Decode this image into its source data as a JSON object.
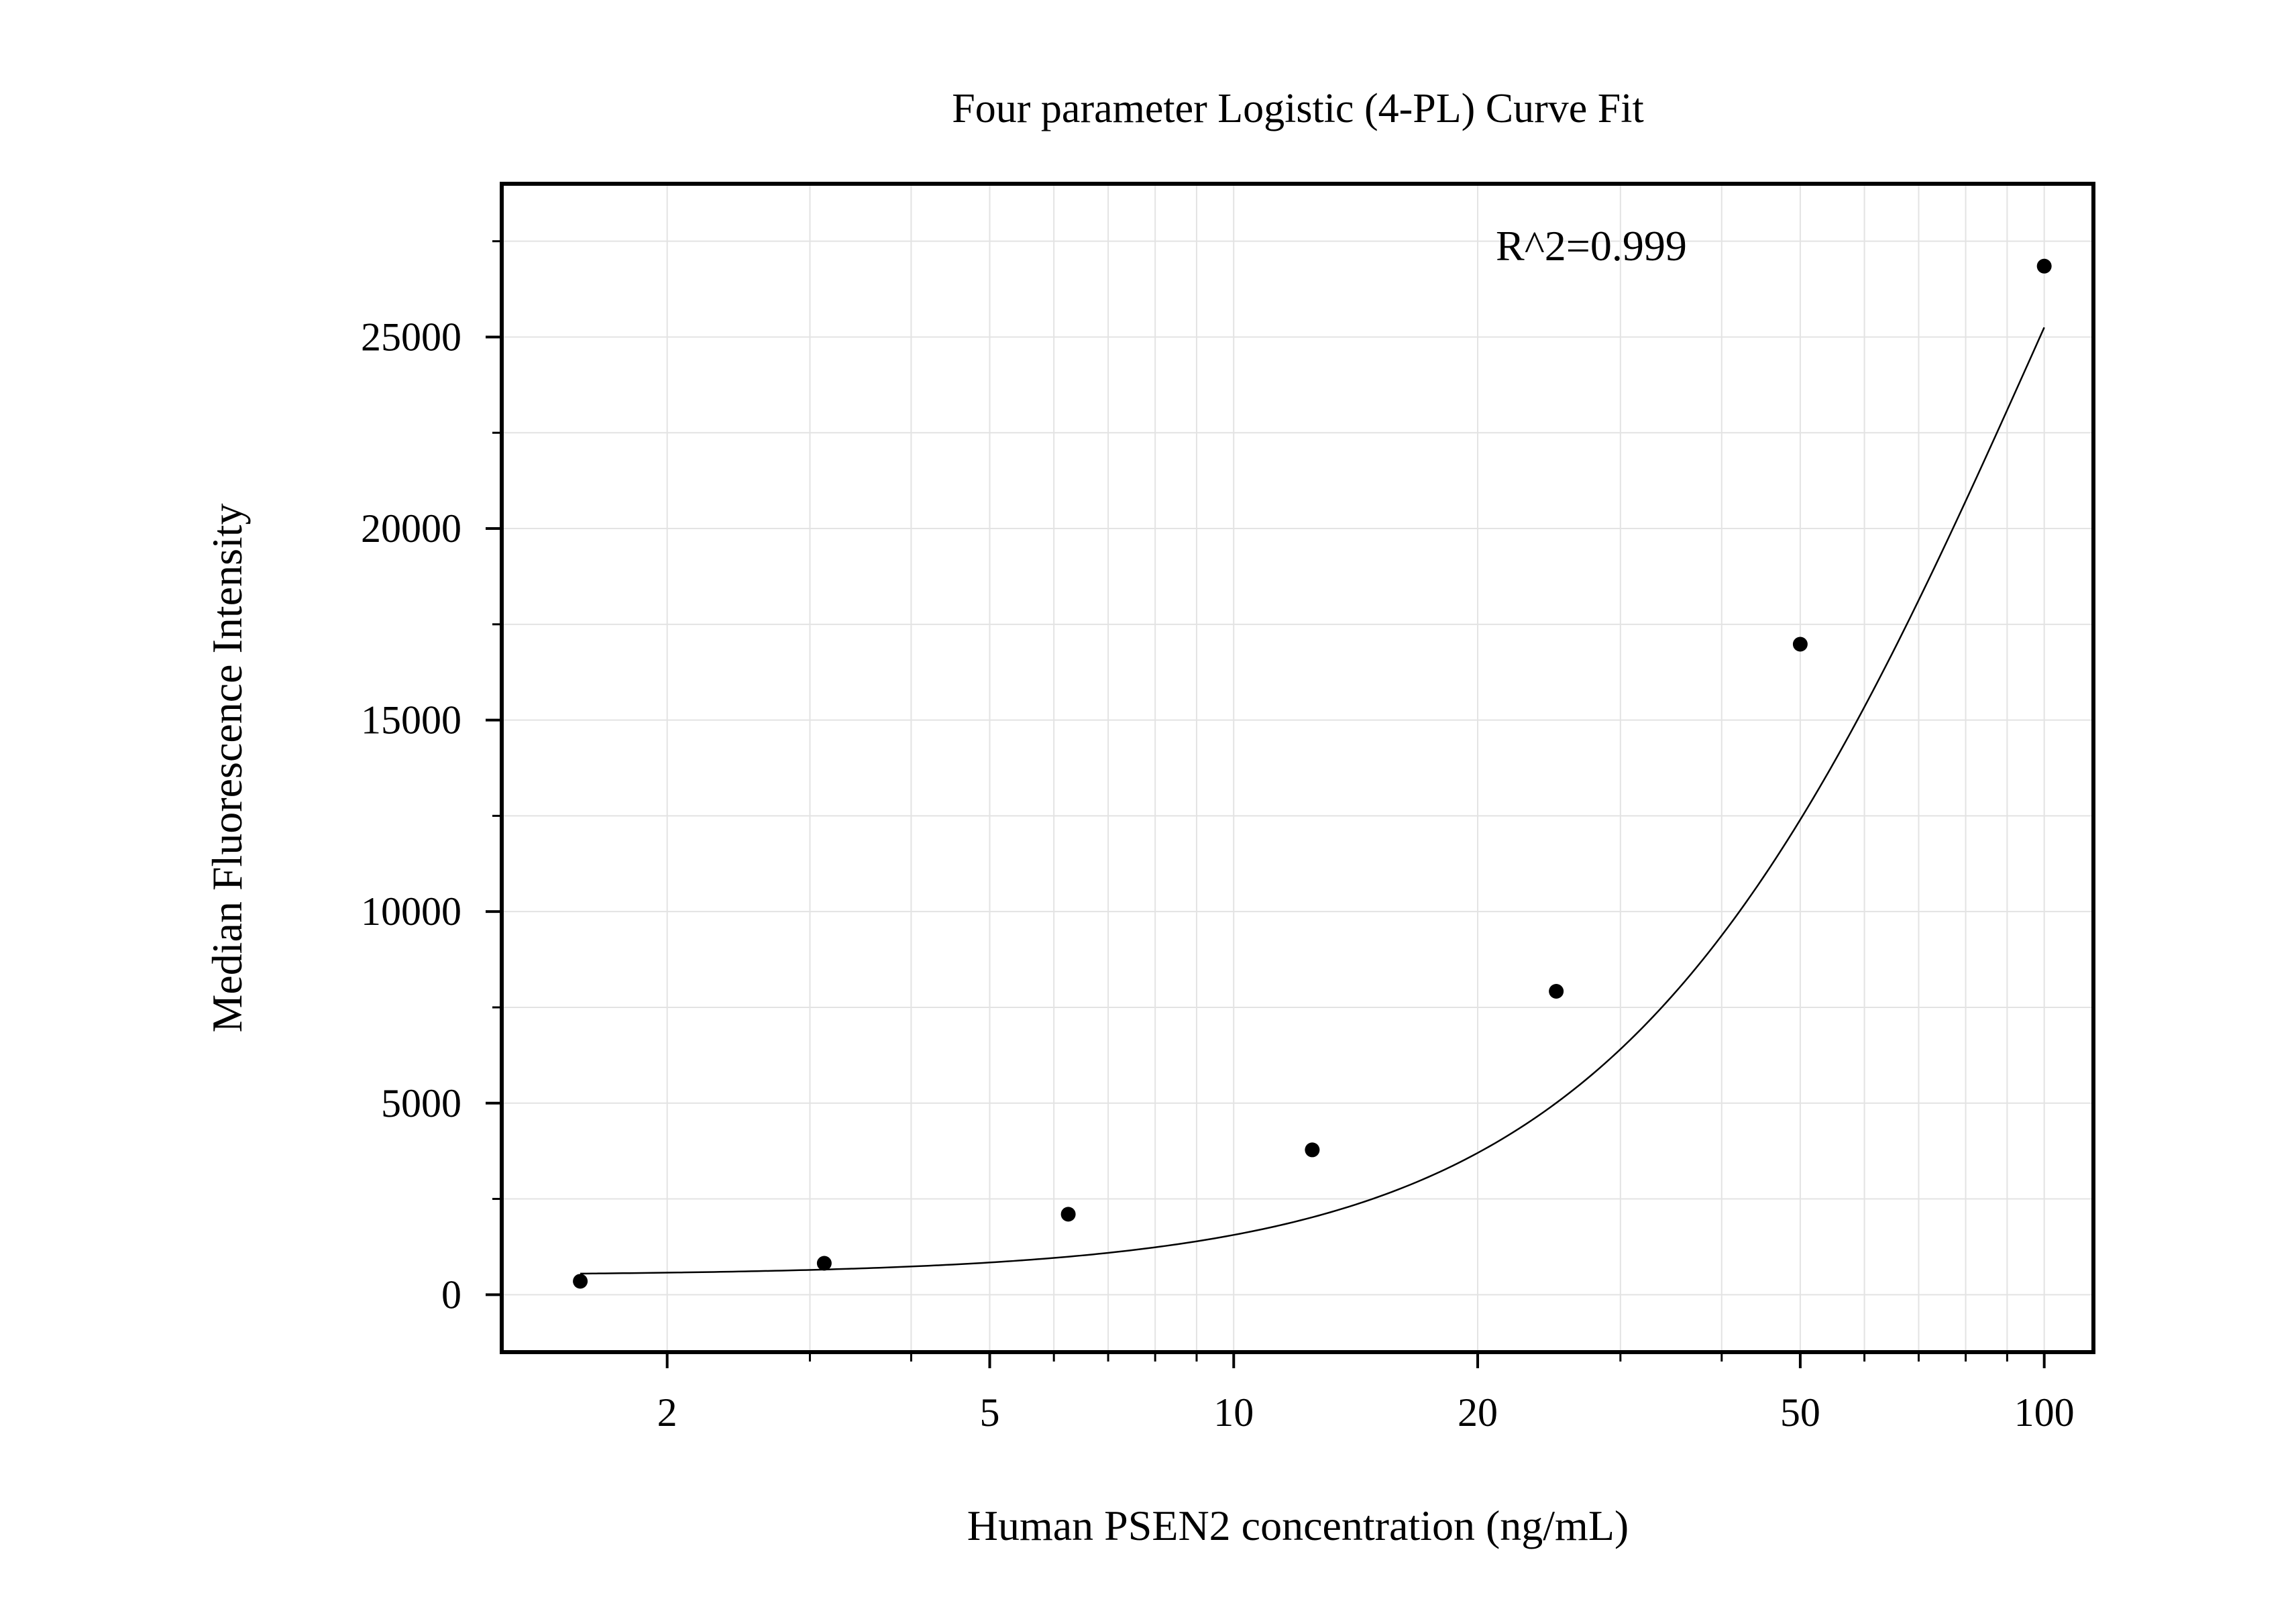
{
  "chart_data": {
    "type": "scatter",
    "title": "Four parameter Logistic (4-PL) Curve Fit",
    "xlabel": "Human PSEN2 concentration (ng/mL)",
    "ylabel": "Median Fluorescence Intensity",
    "xscale": "log",
    "xlim": [
      1.25,
      115
    ],
    "ylim": [
      -1500,
      29000
    ],
    "x_ticks": [
      {
        "value": 2,
        "label": "2"
      },
      {
        "value": 5,
        "label": "5"
      },
      {
        "value": 10,
        "label": "10"
      },
      {
        "value": 20,
        "label": "20"
      },
      {
        "value": 50,
        "label": "50"
      },
      {
        "value": 100,
        "label": "100"
      }
    ],
    "y_ticks": [
      {
        "value": 0,
        "label": "0"
      },
      {
        "value": 5000,
        "label": "5000"
      },
      {
        "value": 10000,
        "label": "10000"
      },
      {
        "value": 15000,
        "label": "15000"
      },
      {
        "value": 20000,
        "label": "20000"
      },
      {
        "value": 25000,
        "label": "25000"
      }
    ],
    "y_minor_ticks": [
      2500,
      7500,
      12500,
      17500,
      22500,
      27500
    ],
    "grid": true,
    "annotation": "R^2=0.999",
    "series": [
      {
        "kind": "points",
        "color": "#000000",
        "x": [
          1.5625,
          3.125,
          6.25,
          12.5,
          25,
          50,
          100
        ],
        "y": [
          350,
          820,
          2100,
          3780,
          7920,
          16980,
          26850
        ]
      },
      {
        "kind": "fit-curve",
        "color": "#000000",
        "model": "4PL",
        "params": {
          "A": 500,
          "B": 1.66,
          "C": 100,
          "D": 50000
        },
        "x_range": [
          1.5625,
          100
        ]
      }
    ]
  }
}
